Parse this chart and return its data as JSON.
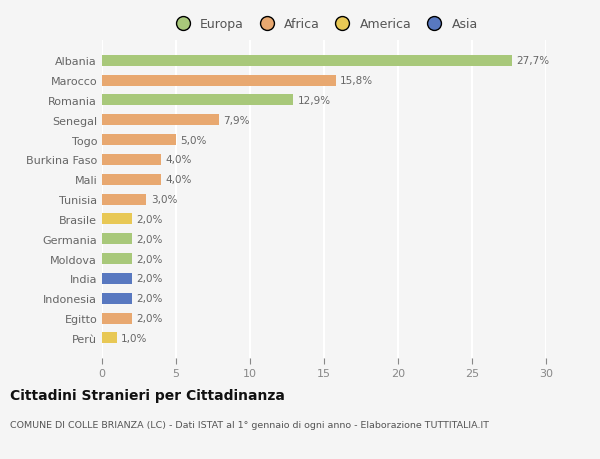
{
  "categories": [
    "Albania",
    "Marocco",
    "Romania",
    "Senegal",
    "Togo",
    "Burkina Faso",
    "Mali",
    "Tunisia",
    "Brasile",
    "Germania",
    "Moldova",
    "India",
    "Indonesia",
    "Egitto",
    "Perù"
  ],
  "values": [
    27.7,
    15.8,
    12.9,
    7.9,
    5.0,
    4.0,
    4.0,
    3.0,
    2.0,
    2.0,
    2.0,
    2.0,
    2.0,
    2.0,
    1.0
  ],
  "labels": [
    "27,7%",
    "15,8%",
    "12,9%",
    "7,9%",
    "5,0%",
    "4,0%",
    "4,0%",
    "3,0%",
    "2,0%",
    "2,0%",
    "2,0%",
    "2,0%",
    "2,0%",
    "2,0%",
    "1,0%"
  ],
  "colors": [
    "#a8c87a",
    "#e8a870",
    "#a8c87a",
    "#e8a870",
    "#e8a870",
    "#e8a870",
    "#e8a870",
    "#e8a870",
    "#e8c855",
    "#a8c87a",
    "#a8c87a",
    "#5878c0",
    "#5878c0",
    "#e8a870",
    "#e8c855"
  ],
  "legend_labels": [
    "Europa",
    "Africa",
    "America",
    "Asia"
  ],
  "legend_colors": [
    "#a8c87a",
    "#e8a870",
    "#e8c855",
    "#5878c0"
  ],
  "xlim": [
    0,
    30
  ],
  "xticks": [
    0,
    5,
    10,
    15,
    20,
    25,
    30
  ],
  "title": "Cittadini Stranieri per Cittadinanza",
  "subtitle": "COMUNE DI COLLE BRIANZA (LC) - Dati ISTAT al 1° gennaio di ogni anno - Elaborazione TUTTITALIA.IT",
  "background_color": "#f5f5f5",
  "grid_color": "#ffffff",
  "bar_height": 0.55,
  "label_fontsize": 7.5,
  "ytick_fontsize": 8.0,
  "xtick_fontsize": 8.0,
  "title_fontsize": 10,
  "subtitle_fontsize": 6.8
}
